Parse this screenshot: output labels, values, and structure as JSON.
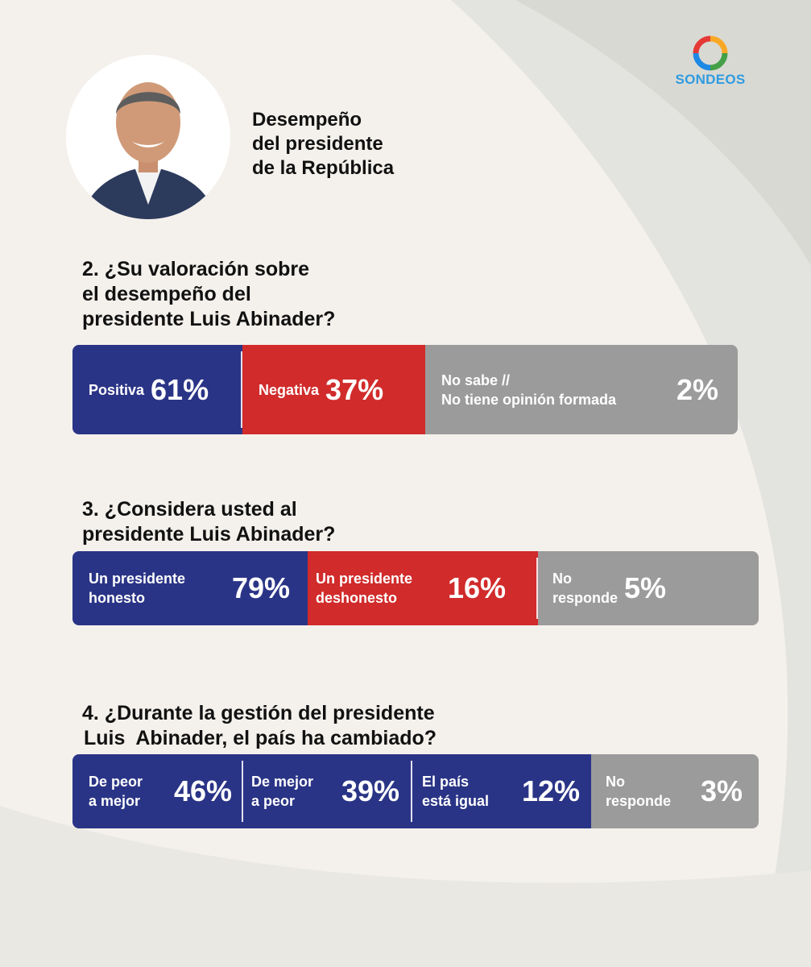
{
  "brand": {
    "name": "SONDEOS",
    "colors": [
      "#e53935",
      "#f9a825",
      "#43a047",
      "#1e88e5"
    ]
  },
  "header": {
    "title_lines": [
      "Desempeño",
      "del presidente",
      "de la República"
    ]
  },
  "colors": {
    "positive": "#2a3486",
    "negative": "#d12b2b",
    "neutral": "#9b9b9b"
  },
  "chart_data": [
    {
      "type": "bar",
      "orientation": "horizontal-stacked",
      "title_lines": [
        "2. ¿Su valoración sobre",
        "el desempeño del",
        "presidente Luis Abinader?"
      ],
      "categories": [
        {
          "label_lines": [
            "Positiva"
          ],
          "value": 61,
          "display": "61%",
          "color": "#2a3486"
        },
        {
          "label_lines": [
            "Negativa"
          ],
          "value": 37,
          "display": "37%",
          "color": "#d12b2b"
        },
        {
          "label_lines": [
            "No sabe //",
            "No tiene opinión formada"
          ],
          "value": 2,
          "display": "2%",
          "color": "#9b9b9b"
        }
      ]
    },
    {
      "type": "bar",
      "orientation": "horizontal-stacked",
      "title_lines": [
        "3. ¿Considera usted al",
        "presidente Luis Abinader?"
      ],
      "categories": [
        {
          "label_lines": [
            "Un presidente",
            "honesto"
          ],
          "value": 79,
          "display": "79%",
          "color": "#2a3486"
        },
        {
          "label_lines": [
            "Un presidente",
            "deshonesto"
          ],
          "value": 16,
          "display": "16%",
          "color": "#d12b2b"
        },
        {
          "label_lines": [
            "No",
            "responde"
          ],
          "value": 5,
          "display": "5%",
          "color": "#9b9b9b"
        }
      ]
    },
    {
      "type": "bar",
      "orientation": "horizontal-stacked",
      "title_lines": [
        "4. ¿Durante la gestión del presidente",
        "Luis  Abinader, el país ha cambiado?"
      ],
      "categories": [
        {
          "label_lines": [
            "De peor",
            "a mejor"
          ],
          "value": 46,
          "display": "46%",
          "color": "#2a3486"
        },
        {
          "label_lines": [
            "De mejor",
            "a peor"
          ],
          "value": 39,
          "display": "39%",
          "color": "#2a3486"
        },
        {
          "label_lines": [
            "El país",
            "está igual"
          ],
          "value": 12,
          "display": "12%",
          "color": "#2a3486"
        },
        {
          "label_lines": [
            "No",
            "responde"
          ],
          "value": 3,
          "display": "3%",
          "color": "#9b9b9b"
        }
      ]
    }
  ]
}
